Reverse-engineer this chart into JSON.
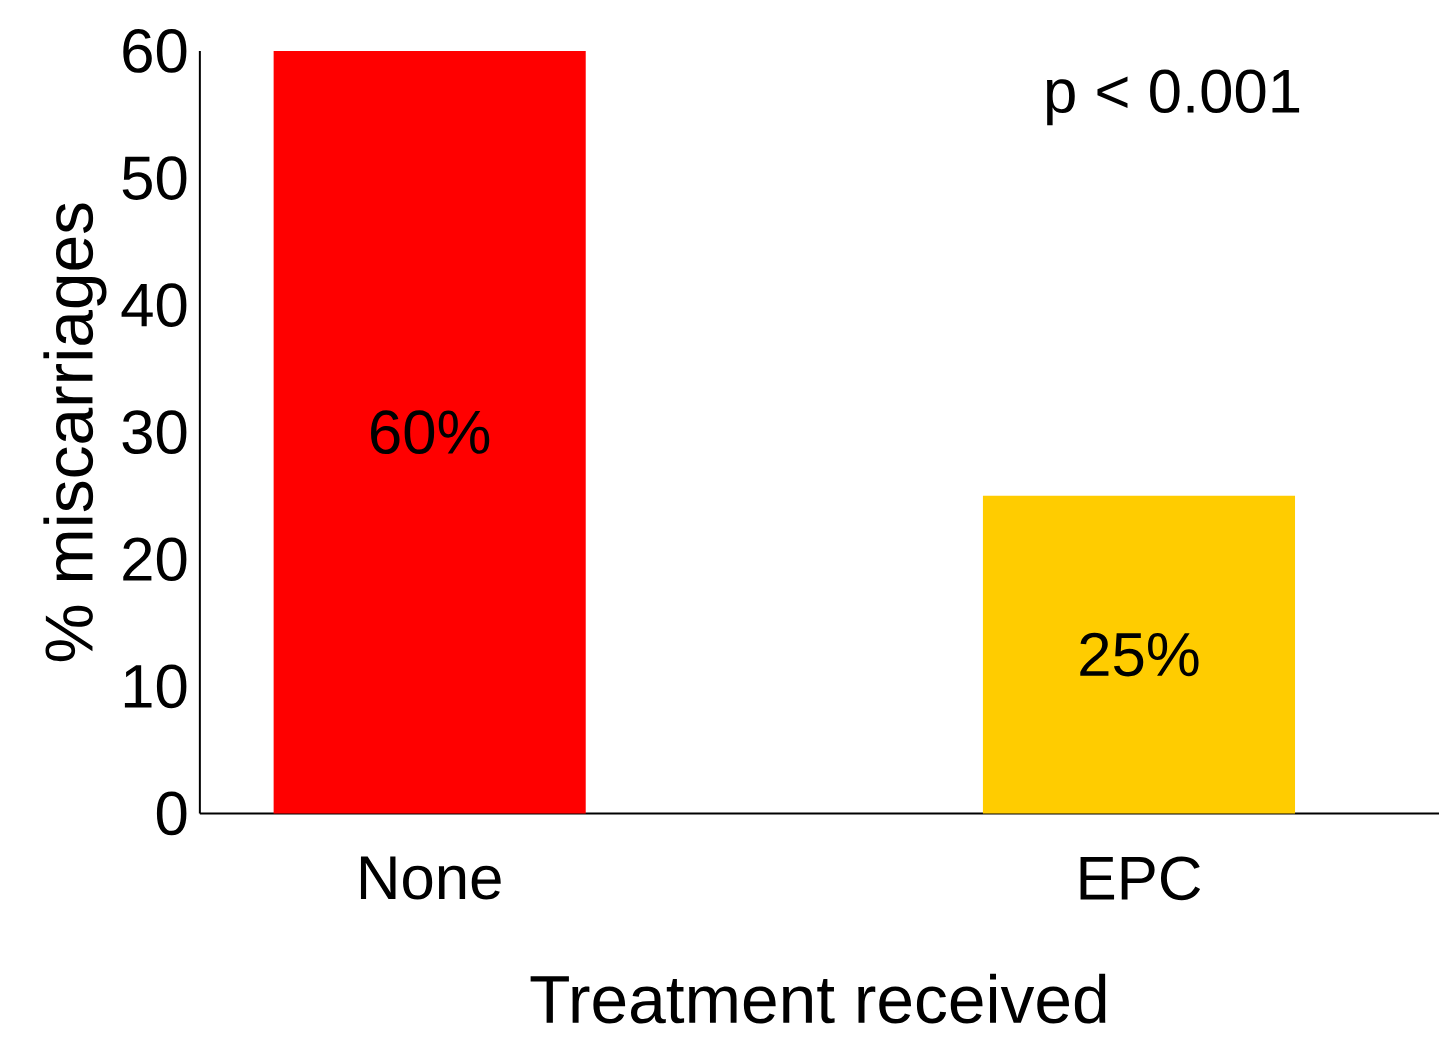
{
  "chart_data": {
    "type": "bar",
    "categories": [
      "None",
      "EPC"
    ],
    "values": [
      60,
      25
    ],
    "colors": [
      "#ff0000",
      "#ffcc00"
    ],
    "value_labels": [
      "60%",
      "25%"
    ],
    "xlabel": "Treatment received",
    "ylabel": "% miscarriages",
    "ylim": [
      0,
      60
    ],
    "yticks": [
      0,
      10,
      20,
      30,
      40,
      50,
      60
    ],
    "annotations": [
      "p < 0.001"
    ]
  }
}
